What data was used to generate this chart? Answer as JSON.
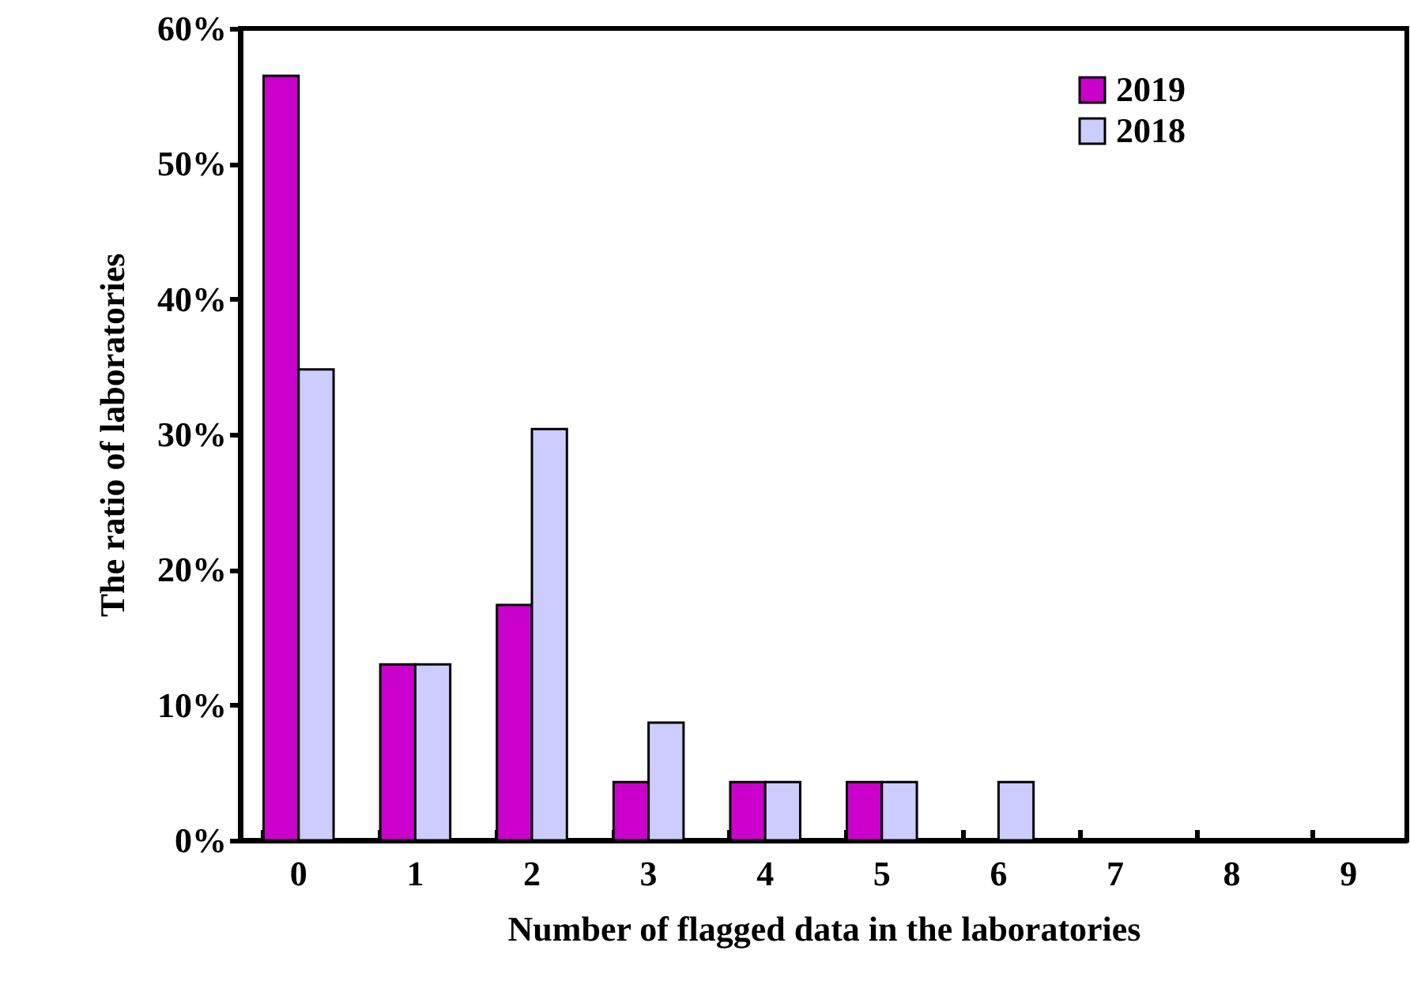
{
  "chart_data": {
    "type": "bar",
    "xlabel": "Number of flagged data in the laboratories",
    "ylabel": "The ratio of laboratories",
    "categories": [
      "0",
      "1",
      "2",
      "3",
      "4",
      "5",
      "6",
      "7",
      "8",
      "9"
    ],
    "series": [
      {
        "name": "2019",
        "color": "#cc00cc",
        "values": [
          56.5,
          13.0,
          17.4,
          4.3,
          4.3,
          4.3,
          null,
          null,
          null,
          null
        ]
      },
      {
        "name": "2018",
        "color": "#ccccff",
        "values": [
          34.8,
          13.0,
          30.4,
          8.7,
          4.3,
          4.3,
          4.3,
          null,
          null,
          null
        ]
      }
    ],
    "ylim": [
      0,
      60
    ],
    "yticks": [
      {
        "value": 0,
        "label": "0%"
      },
      {
        "value": 10,
        "label": "10%"
      },
      {
        "value": 20,
        "label": "20%"
      },
      {
        "value": 30,
        "label": "30%"
      },
      {
        "value": 40,
        "label": "40%"
      },
      {
        "value": 50,
        "label": "50%"
      },
      {
        "value": 60,
        "label": "60%"
      }
    ],
    "legend": "top right"
  }
}
